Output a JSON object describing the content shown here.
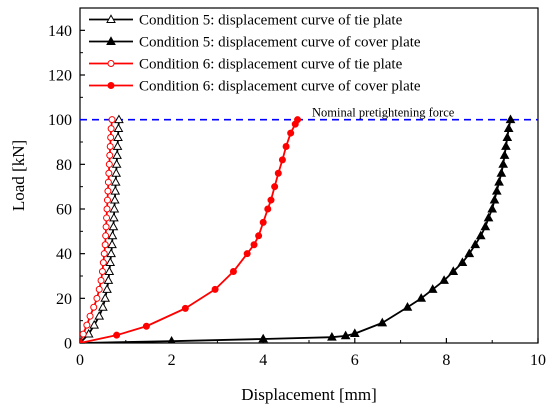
{
  "chart_data": {
    "type": "line",
    "xlabel": "Displacement [mm]",
    "ylabel": "Load [kN]",
    "xlim": [
      0,
      10
    ],
    "ylim": [
      0,
      150
    ],
    "xticks": [
      0,
      2,
      4,
      6,
      8,
      10
    ],
    "yticks": [
      0,
      20,
      40,
      60,
      80,
      100,
      120,
      140
    ],
    "grid": false,
    "legend_position": "top-left",
    "reference_line": {
      "y": 100,
      "label": "Nominal pretightening force",
      "color": "#0000ff",
      "style": "dashed"
    },
    "series": [
      {
        "name": "Condition 5: displacement curve of tie plate",
        "color": "#000000",
        "marker": "open-triangle",
        "points": [
          [
            0,
            0
          ],
          [
            0.19,
            4
          ],
          [
            0.31,
            8
          ],
          [
            0.42,
            12
          ],
          [
            0.5,
            16
          ],
          [
            0.55,
            20
          ],
          [
            0.59,
            24
          ],
          [
            0.62,
            28
          ],
          [
            0.64,
            32
          ],
          [
            0.66,
            36
          ],
          [
            0.68,
            40
          ],
          [
            0.7,
            44
          ],
          [
            0.71,
            48
          ],
          [
            0.73,
            52
          ],
          [
            0.74,
            56
          ],
          [
            0.75,
            60
          ],
          [
            0.76,
            64
          ],
          [
            0.77,
            68
          ],
          [
            0.78,
            72
          ],
          [
            0.79,
            76
          ],
          [
            0.8,
            80
          ],
          [
            0.81,
            84
          ],
          [
            0.82,
            88
          ],
          [
            0.83,
            92
          ],
          [
            0.84,
            96
          ],
          [
            0.85,
            100
          ]
        ]
      },
      {
        "name": "Condition 5: displacement curve of cover plate",
        "color": "#000000",
        "marker": "filled-triangle",
        "points": [
          [
            0,
            0
          ],
          [
            2,
            0.8
          ],
          [
            4,
            1.8
          ],
          [
            5.5,
            2.6
          ],
          [
            5.8,
            3.2
          ],
          [
            6.0,
            4.2
          ],
          [
            6.6,
            9
          ],
          [
            7.15,
            16
          ],
          [
            7.45,
            20
          ],
          [
            7.7,
            24
          ],
          [
            7.95,
            28
          ],
          [
            8.15,
            32
          ],
          [
            8.35,
            36
          ],
          [
            8.5,
            40
          ],
          [
            8.63,
            44
          ],
          [
            8.75,
            48
          ],
          [
            8.85,
            52
          ],
          [
            8.92,
            56
          ],
          [
            9.0,
            60
          ],
          [
            9.05,
            64
          ],
          [
            9.1,
            68
          ],
          [
            9.15,
            72
          ],
          [
            9.2,
            76
          ],
          [
            9.24,
            80
          ],
          [
            9.27,
            84
          ],
          [
            9.3,
            88
          ],
          [
            9.33,
            92
          ],
          [
            9.36,
            96
          ],
          [
            9.4,
            100
          ]
        ]
      },
      {
        "name": "Condition 6: displacement curve of tie plate",
        "color": "#ff0000",
        "marker": "open-circle",
        "points": [
          [
            0,
            0
          ],
          [
            0.07,
            4
          ],
          [
            0.15,
            8
          ],
          [
            0.22,
            12
          ],
          [
            0.3,
            16
          ],
          [
            0.37,
            20
          ],
          [
            0.42,
            24
          ],
          [
            0.46,
            28
          ],
          [
            0.49,
            32
          ],
          [
            0.51,
            36
          ],
          [
            0.53,
            40
          ],
          [
            0.55,
            44
          ],
          [
            0.56,
            48
          ],
          [
            0.57,
            52
          ],
          [
            0.58,
            56
          ],
          [
            0.59,
            60
          ],
          [
            0.6,
            64
          ],
          [
            0.61,
            68
          ],
          [
            0.62,
            72
          ],
          [
            0.63,
            76
          ],
          [
            0.64,
            80
          ],
          [
            0.65,
            84
          ],
          [
            0.66,
            88
          ],
          [
            0.67,
            92
          ],
          [
            0.68,
            96
          ],
          [
            0.7,
            100
          ]
        ]
      },
      {
        "name": "Condition 6: displacement curve of cover plate",
        "color": "#ff0000",
        "marker": "filled-circle",
        "points": [
          [
            0,
            0
          ],
          [
            0.8,
            3.5
          ],
          [
            1.45,
            7.5
          ],
          [
            2.3,
            15.5
          ],
          [
            2.95,
            24
          ],
          [
            3.35,
            32
          ],
          [
            3.65,
            40
          ],
          [
            3.8,
            44
          ],
          [
            3.9,
            48
          ],
          [
            4.0,
            54
          ],
          [
            4.1,
            60
          ],
          [
            4.17,
            64
          ],
          [
            4.25,
            70
          ],
          [
            4.33,
            76
          ],
          [
            4.42,
            82
          ],
          [
            4.5,
            88
          ],
          [
            4.6,
            94
          ],
          [
            4.7,
            98
          ],
          [
            4.75,
            100
          ]
        ]
      }
    ]
  }
}
